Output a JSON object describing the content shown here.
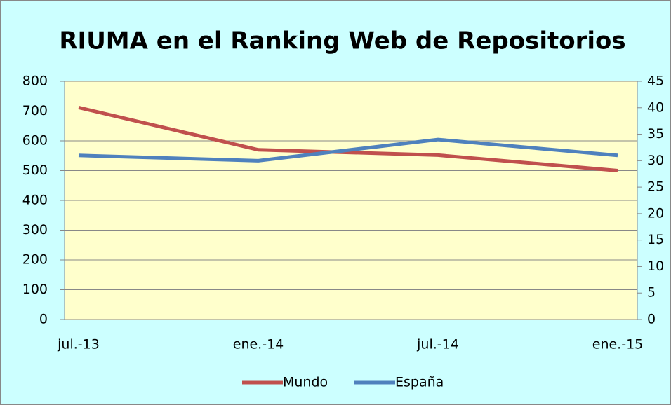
{
  "chart_data": {
    "type": "line",
    "title": "RIUMA en el Ranking Web de Repositorios",
    "categories": [
      "jul.-13",
      "ene.-14",
      "jul.-14",
      "ene.-15"
    ],
    "series": [
      {
        "name": "Mundo",
        "color": "#c0504d",
        "values": [
          712,
          570,
          552,
          500
        ]
      },
      {
        "name": "España",
        "color": "#4f81bd",
        "values": [
          31,
          30,
          34,
          31
        ],
        "axis": "y2"
      }
    ],
    "ylim": [
      0,
      800
    ],
    "yticks": [
      0,
      100,
      200,
      300,
      400,
      500,
      600,
      700,
      800
    ],
    "y2lim": [
      0,
      45
    ],
    "y2ticks": [
      0,
      5,
      10,
      15,
      20,
      25,
      30,
      35,
      40,
      45
    ],
    "grid": true,
    "legend": "bottom"
  }
}
